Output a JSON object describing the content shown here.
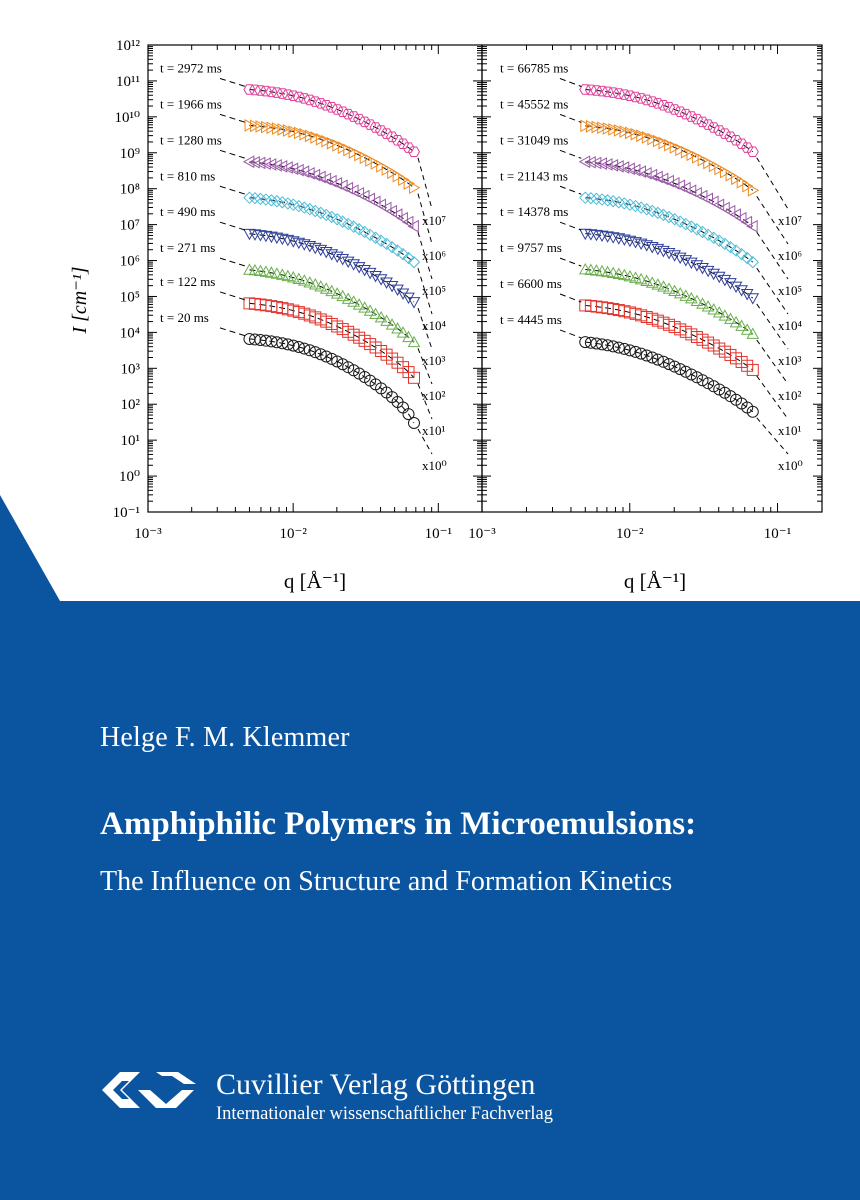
{
  "cover": {
    "background_color": "#ffffff",
    "band_color": "#0b55a0",
    "author": "Helge F. M. Klemmer",
    "title": "Amphiphilic Polymers in Microemulsions:",
    "subtitle": "The Influence on Structure and Formation Kinetics",
    "publisher": {
      "name": "Cuvillier Verlag Göttingen",
      "tagline": "Internationaler wissenschaftlicher Fachverlag",
      "logo_icon": "cuvillier-cv-logo-icon"
    }
  },
  "chart_data": {
    "type": "scatter",
    "xlabel": "q [Å⁻¹]",
    "ylabel": "I [cm⁻¹]",
    "x_scale": "log",
    "y_scale": "log",
    "xlim": [
      0.001,
      0.2
    ],
    "ylim": [
      0.1,
      1000000000000
    ],
    "x_ticks": [
      0.001,
      0.01,
      0.1
    ],
    "y_ticks": [
      0.1,
      1,
      10,
      100,
      1000,
      10000,
      100000,
      1000000,
      10000000,
      100000000,
      1000000000,
      10000000000,
      100000000000,
      1000000000000
    ],
    "marker_legend": [
      "circle",
      "square",
      "triangle-up",
      "triangle-down",
      "diamond",
      "triangle-left",
      "triangle-right",
      "hexagon"
    ],
    "panels": [
      {
        "series": [
          {
            "label": "t = 20 ms",
            "factor": "x10^0",
            "color": "#1a1a1a",
            "marker": "circle",
            "plateau": 8000,
            "qc": 0.014,
            "slope": 2.6,
            "cutoff": 0.075
          },
          {
            "label": "t = 122 ms",
            "factor": "x10^1",
            "color": "#e2332b",
            "marker": "square",
            "plateau": 80000,
            "qc": 0.012,
            "slope": 2.3,
            "cutoff": 0.085
          },
          {
            "label": "t = 271 ms",
            "factor": "x10^2",
            "color": "#6ab04c",
            "marker": "triangle-up",
            "plateau": 700000,
            "qc": 0.011,
            "slope": 2.2,
            "cutoff": 0.09
          },
          {
            "label": "t = 490 ms",
            "factor": "x10^3",
            "color": "#2f3f9a",
            "marker": "triangle-down",
            "plateau": 7000000,
            "qc": 0.011,
            "slope": 2.1,
            "cutoff": 0.095
          },
          {
            "label": "t = 810 ms",
            "factor": "x10^4",
            "color": "#4fbcd6",
            "marker": "diamond",
            "plateau": 70000000,
            "qc": 0.011,
            "slope": 2.0,
            "cutoff": 0.1
          },
          {
            "label": "t = 1280 ms",
            "factor": "x10^5",
            "color": "#9a5aa8",
            "marker": "triangle-left",
            "plateau": 700000000,
            "qc": 0.011,
            "slope": 2.0,
            "cutoff": 0.1
          },
          {
            "label": "t = 1966 ms",
            "factor": "x10^6",
            "color": "#ee8a22",
            "marker": "triangle-right",
            "plateau": 7000000000,
            "qc": 0.012,
            "slope": 2.0,
            "cutoff": 0.1
          },
          {
            "label": "t = 2972 ms",
            "factor": "x10^7",
            "color": "#e0409a",
            "marker": "hexagon",
            "plateau": 70000000000,
            "qc": 0.012,
            "slope": 2.0,
            "cutoff": 0.1
          }
        ]
      },
      {
        "series": [
          {
            "label": "t = 4445 ms",
            "factor": "x10^0",
            "color": "#1a1a1a",
            "marker": "circle",
            "plateau": 7000,
            "qc": 0.01,
            "slope": 2.1,
            "cutoff": 0.1
          },
          {
            "label": "t = 6600 ms",
            "factor": "x10^1",
            "color": "#e2332b",
            "marker": "square",
            "plateau": 70000,
            "qc": 0.011,
            "slope": 2.0,
            "cutoff": 0.1
          },
          {
            "label": "t = 9757 ms",
            "factor": "x10^2",
            "color": "#6ab04c",
            "marker": "triangle-up",
            "plateau": 700000,
            "qc": 0.011,
            "slope": 2.0,
            "cutoff": 0.1
          },
          {
            "label": "t = 14378 ms",
            "factor": "x10^3",
            "color": "#2f3f9a",
            "marker": "triangle-down",
            "plateau": 7000000,
            "qc": 0.011,
            "slope": 2.0,
            "cutoff": 0.1
          },
          {
            "label": "t = 21143 ms",
            "factor": "x10^4",
            "color": "#4fbcd6",
            "marker": "diamond",
            "plateau": 70000000,
            "qc": 0.011,
            "slope": 2.0,
            "cutoff": 0.1
          },
          {
            "label": "t = 31049 ms",
            "factor": "x10^5",
            "color": "#9a5aa8",
            "marker": "triangle-left",
            "plateau": 700000000,
            "qc": 0.011,
            "slope": 2.0,
            "cutoff": 0.1
          },
          {
            "label": "t = 45552 ms",
            "factor": "x10^6",
            "color": "#ee8a22",
            "marker": "triangle-right",
            "plateau": 7000000000,
            "qc": 0.011,
            "slope": 2.0,
            "cutoff": 0.1
          },
          {
            "label": "t = 66785 ms",
            "factor": "x10^7",
            "color": "#e0409a",
            "marker": "hexagon",
            "plateau": 70000000000,
            "qc": 0.012,
            "slope": 2.0,
            "cutoff": 0.1
          }
        ]
      }
    ]
  }
}
